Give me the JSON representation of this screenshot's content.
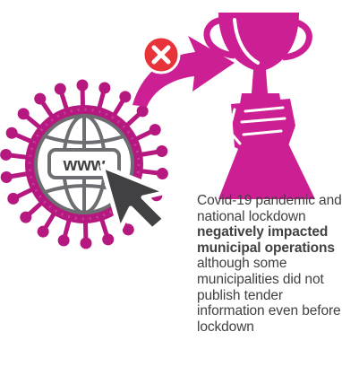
{
  "colors": {
    "virus": "#b5197f",
    "virus_ring": "#c83d98",
    "trophy": "#cc1f94",
    "arrow": "#cc1f94",
    "globe_stroke": "#6d6e71",
    "globe_fill": "#ffffff",
    "cursor": "#414042",
    "cancel_badge": "#e8333b",
    "caption_text": "#414042"
  },
  "illustration": {
    "globe_label": "www",
    "icons": [
      "virus-icon",
      "globe-icon",
      "cursor-icon",
      "cancel-icon",
      "curved-arrow-icon",
      "trophy-hand-icon"
    ]
  },
  "caption": {
    "part1": "Covid-19 pandemic and national lockdown ",
    "bold": "negatively impacted municipal operations",
    "part2": " although some municipalities did not publish tender information even before lockdown"
  }
}
